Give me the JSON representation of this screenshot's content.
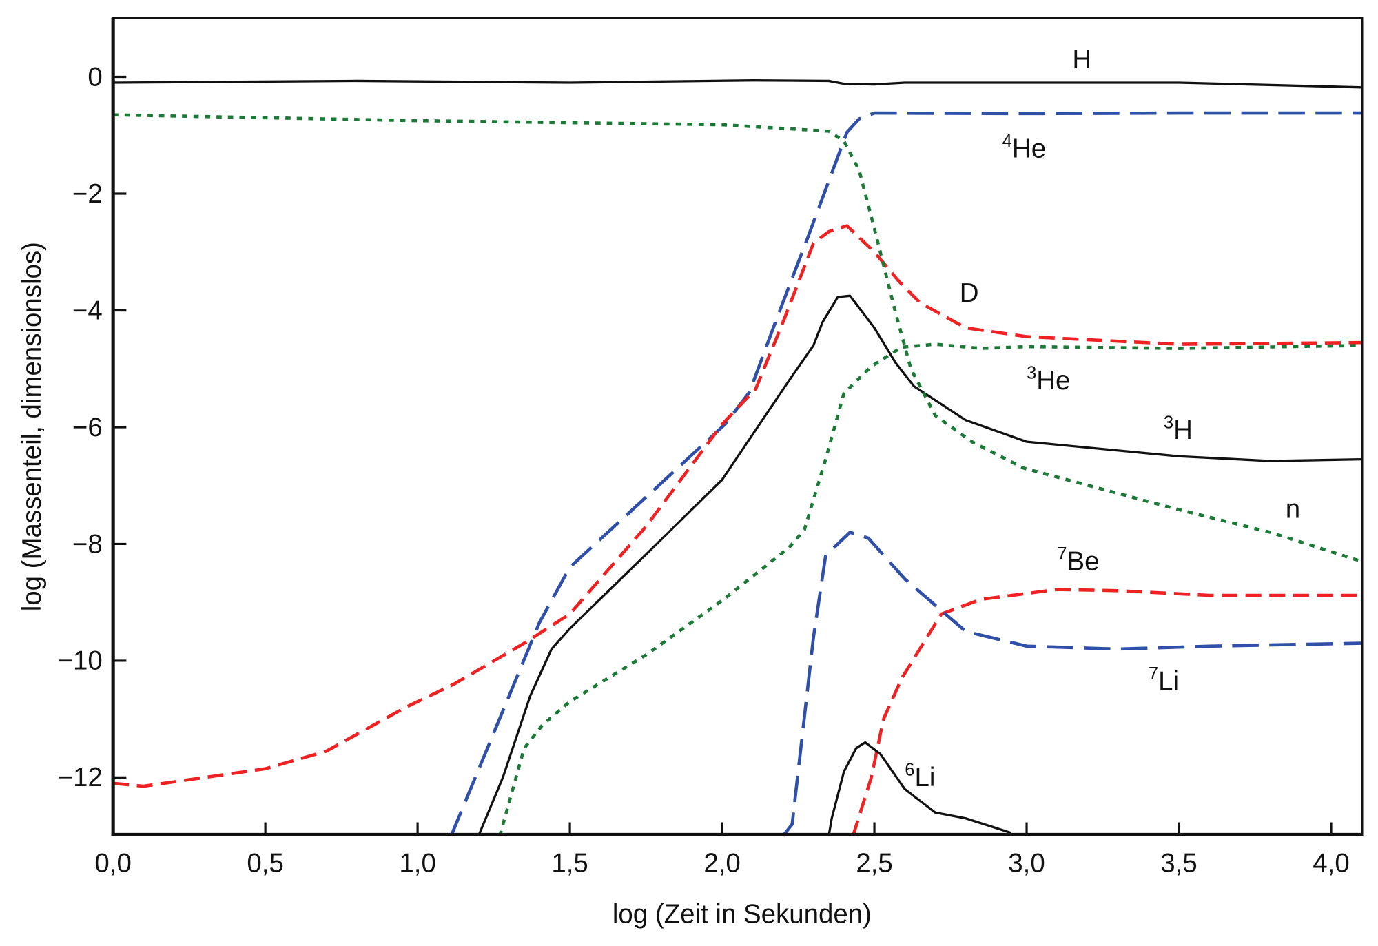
{
  "chart_data": {
    "type": "line",
    "title": "",
    "xlabel": "log (Zeit in Sekunden)",
    "ylabel": "log (Massenteil, dimensionslos)",
    "xlim": [
      0.0,
      4.1
    ],
    "ylim": [
      -13,
      1
    ],
    "grid": false,
    "x_ticks": [
      0.0,
      0.5,
      1.0,
      1.5,
      2.0,
      2.5,
      3.0,
      3.5,
      4.0
    ],
    "x_tick_labels": [
      "0,0",
      "0,5",
      "1,0",
      "1,5",
      "2,0",
      "2,5",
      "3,0",
      "3,5",
      "4,0"
    ],
    "y_ticks": [
      0,
      -2,
      -4,
      -6,
      -8,
      -10,
      -12
    ],
    "y_tick_labels": [
      "0",
      "−2",
      "−4",
      "−6",
      "−8",
      "−10",
      "−12"
    ],
    "series": [
      {
        "name": "H",
        "sup": "",
        "color": "#111111",
        "style": "solid",
        "points": [
          [
            0,
            -0.1
          ],
          [
            0.8,
            -0.07
          ],
          [
            1.5,
            -0.1
          ],
          [
            2.1,
            -0.06
          ],
          [
            2.35,
            -0.07
          ],
          [
            2.4,
            -0.12
          ],
          [
            2.5,
            -0.13
          ],
          [
            2.6,
            -0.1
          ],
          [
            3.0,
            -0.1
          ],
          [
            3.5,
            -0.1
          ],
          [
            4.1,
            -0.18
          ]
        ]
      },
      {
        "name": "He",
        "sup": "4",
        "color": "#2f4fa8",
        "style": "longdash",
        "points": [
          [
            1.11,
            -13
          ],
          [
            1.4,
            -9.35
          ],
          [
            1.5,
            -8.4
          ],
          [
            1.75,
            -7.2
          ],
          [
            2.01,
            -5.95
          ],
          [
            2.09,
            -5.4
          ],
          [
            2.18,
            -4.13
          ],
          [
            2.28,
            -2.77
          ],
          [
            2.41,
            -0.95
          ],
          [
            2.45,
            -0.72
          ],
          [
            2.5,
            -0.62
          ],
          [
            3.0,
            -0.63
          ],
          [
            3.5,
            -0.62
          ],
          [
            4.1,
            -0.62
          ]
        ]
      },
      {
        "name": "D",
        "sup": "",
        "color": "#ee2222",
        "style": "dash",
        "points": [
          [
            0,
            -12.1
          ],
          [
            0.1,
            -12.15
          ],
          [
            0.5,
            -11.85
          ],
          [
            0.7,
            -11.55
          ],
          [
            0.96,
            -10.8
          ],
          [
            1.12,
            -10.4
          ],
          [
            1.35,
            -9.7
          ],
          [
            1.5,
            -9.2
          ],
          [
            1.75,
            -7.7
          ],
          [
            2.0,
            -5.95
          ],
          [
            2.11,
            -5.35
          ],
          [
            2.2,
            -4.2
          ],
          [
            2.3,
            -2.85
          ],
          [
            2.35,
            -2.65
          ],
          [
            2.41,
            -2.55
          ],
          [
            2.5,
            -3.0
          ],
          [
            2.58,
            -3.5
          ],
          [
            2.65,
            -3.87
          ],
          [
            2.8,
            -4.3
          ],
          [
            3.0,
            -4.45
          ],
          [
            3.5,
            -4.58
          ],
          [
            4.1,
            -4.55
          ]
        ]
      },
      {
        "name": "He",
        "sup": "3",
        "color": "#1a7a35",
        "style": "dot",
        "points": [
          [
            1.27,
            -13
          ],
          [
            1.35,
            -11.5
          ],
          [
            1.41,
            -11.1
          ],
          [
            1.5,
            -10.7
          ],
          [
            1.75,
            -9.9
          ],
          [
            2.0,
            -8.97
          ],
          [
            2.22,
            -8.06
          ],
          [
            2.27,
            -7.76
          ],
          [
            2.34,
            -6.55
          ],
          [
            2.4,
            -5.42
          ],
          [
            2.49,
            -4.96
          ],
          [
            2.59,
            -4.63
          ],
          [
            2.7,
            -4.58
          ],
          [
            2.85,
            -4.65
          ],
          [
            3.0,
            -4.62
          ],
          [
            3.5,
            -4.65
          ],
          [
            4.1,
            -4.6
          ]
        ]
      },
      {
        "name": "H",
        "sup": "3",
        "color": "#111111",
        "style": "solid",
        "points": [
          [
            1.2,
            -13
          ],
          [
            1.28,
            -12.0
          ],
          [
            1.37,
            -10.6
          ],
          [
            1.44,
            -9.8
          ],
          [
            1.5,
            -9.45
          ],
          [
            1.75,
            -8.18
          ],
          [
            2.0,
            -6.9
          ],
          [
            2.22,
            -5.2
          ],
          [
            2.3,
            -4.6
          ],
          [
            2.33,
            -4.2
          ],
          [
            2.38,
            -3.77
          ],
          [
            2.42,
            -3.75
          ],
          [
            2.5,
            -4.3
          ],
          [
            2.57,
            -4.9
          ],
          [
            2.63,
            -5.3
          ],
          [
            2.8,
            -5.88
          ],
          [
            3.0,
            -6.25
          ],
          [
            3.5,
            -6.5
          ],
          [
            3.8,
            -6.58
          ],
          [
            4.1,
            -6.55
          ]
        ]
      },
      {
        "name": "n",
        "sup": "",
        "color": "#1a7a35",
        "style": "dot",
        "points": [
          [
            0,
            -0.65
          ],
          [
            1.0,
            -0.75
          ],
          [
            2.0,
            -0.82
          ],
          [
            2.35,
            -0.93
          ],
          [
            2.4,
            -1.1
          ],
          [
            2.45,
            -1.6
          ],
          [
            2.5,
            -2.6
          ],
          [
            2.57,
            -4.05
          ],
          [
            2.62,
            -5.0
          ],
          [
            2.7,
            -5.8
          ],
          [
            2.82,
            -6.25
          ],
          [
            2.99,
            -6.7
          ],
          [
            3.49,
            -7.4
          ],
          [
            3.8,
            -7.8
          ],
          [
            4.1,
            -8.3
          ]
        ]
      },
      {
        "name": "Be",
        "sup": "7",
        "color": "#ee2222",
        "style": "dash",
        "points": [
          [
            2.43,
            -13
          ],
          [
            2.49,
            -12.0
          ],
          [
            2.53,
            -11.0
          ],
          [
            2.59,
            -10.3
          ],
          [
            2.72,
            -9.2
          ],
          [
            2.85,
            -8.95
          ],
          [
            3.1,
            -8.78
          ],
          [
            3.3,
            -8.8
          ],
          [
            3.6,
            -8.88
          ],
          [
            4.1,
            -8.88
          ]
        ]
      },
      {
        "name": "Li",
        "sup": "7",
        "color": "#2f4fa8",
        "style": "longdash",
        "points": [
          [
            2.2,
            -13
          ],
          [
            2.23,
            -12.8
          ],
          [
            2.3,
            -9.6
          ],
          [
            2.34,
            -8.2
          ],
          [
            2.42,
            -7.8
          ],
          [
            2.48,
            -7.9
          ],
          [
            2.6,
            -8.6
          ],
          [
            2.8,
            -9.5
          ],
          [
            3.0,
            -9.75
          ],
          [
            3.3,
            -9.8
          ],
          [
            3.6,
            -9.75
          ],
          [
            4.1,
            -9.7
          ]
        ]
      },
      {
        "name": "Li",
        "sup": "6",
        "color": "#111111",
        "style": "solid",
        "points": [
          [
            2.35,
            -13
          ],
          [
            2.36,
            -12.7
          ],
          [
            2.4,
            -11.9
          ],
          [
            2.44,
            -11.5
          ],
          [
            2.47,
            -11.4
          ],
          [
            2.52,
            -11.6
          ],
          [
            2.6,
            -12.2
          ],
          [
            2.7,
            -12.6
          ],
          [
            2.8,
            -12.7
          ],
          [
            2.95,
            -12.95
          ]
        ]
      }
    ]
  }
}
